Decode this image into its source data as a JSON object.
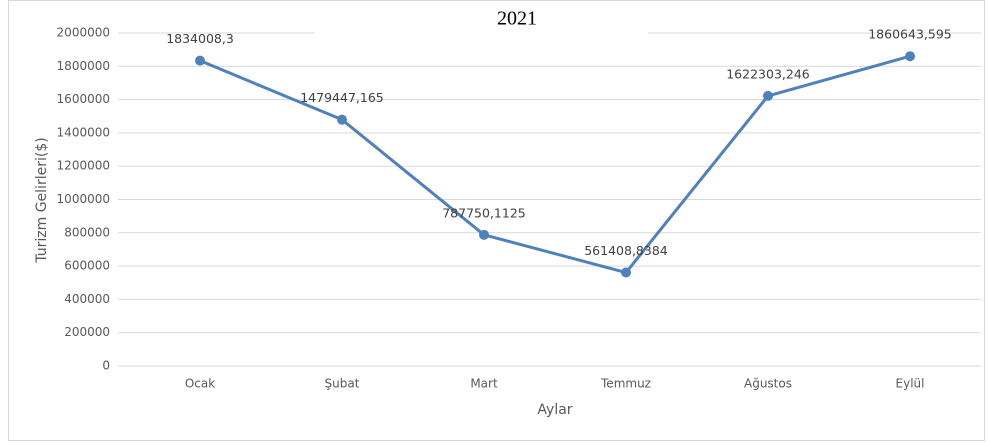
{
  "chart_data": {
    "type": "line",
    "title": "2021",
    "x_label": "Aylar",
    "y_label": "Turizm Gelirleri($)",
    "categories": [
      "Ocak",
      "Şubat",
      "Mart",
      "Temmuz",
      "Ağustos",
      "Eylül"
    ],
    "series": [
      {
        "name": "2021",
        "color": "#4f81bd",
        "values": [
          1834008.3,
          1479447.165,
          787750.1125,
          561408.8384,
          1622303.246,
          1860643.595
        ],
        "value_labels": [
          "1834008,3",
          "1479447,165",
          "787750,1125",
          "561408,8384",
          "1622303,246",
          "1860643,595"
        ]
      }
    ],
    "ylim": [
      0,
      2000000
    ],
    "yticks": [
      0,
      200000,
      400000,
      600000,
      800000,
      1000000,
      1200000,
      1400000,
      1600000,
      1800000,
      2000000
    ],
    "grid": true
  }
}
